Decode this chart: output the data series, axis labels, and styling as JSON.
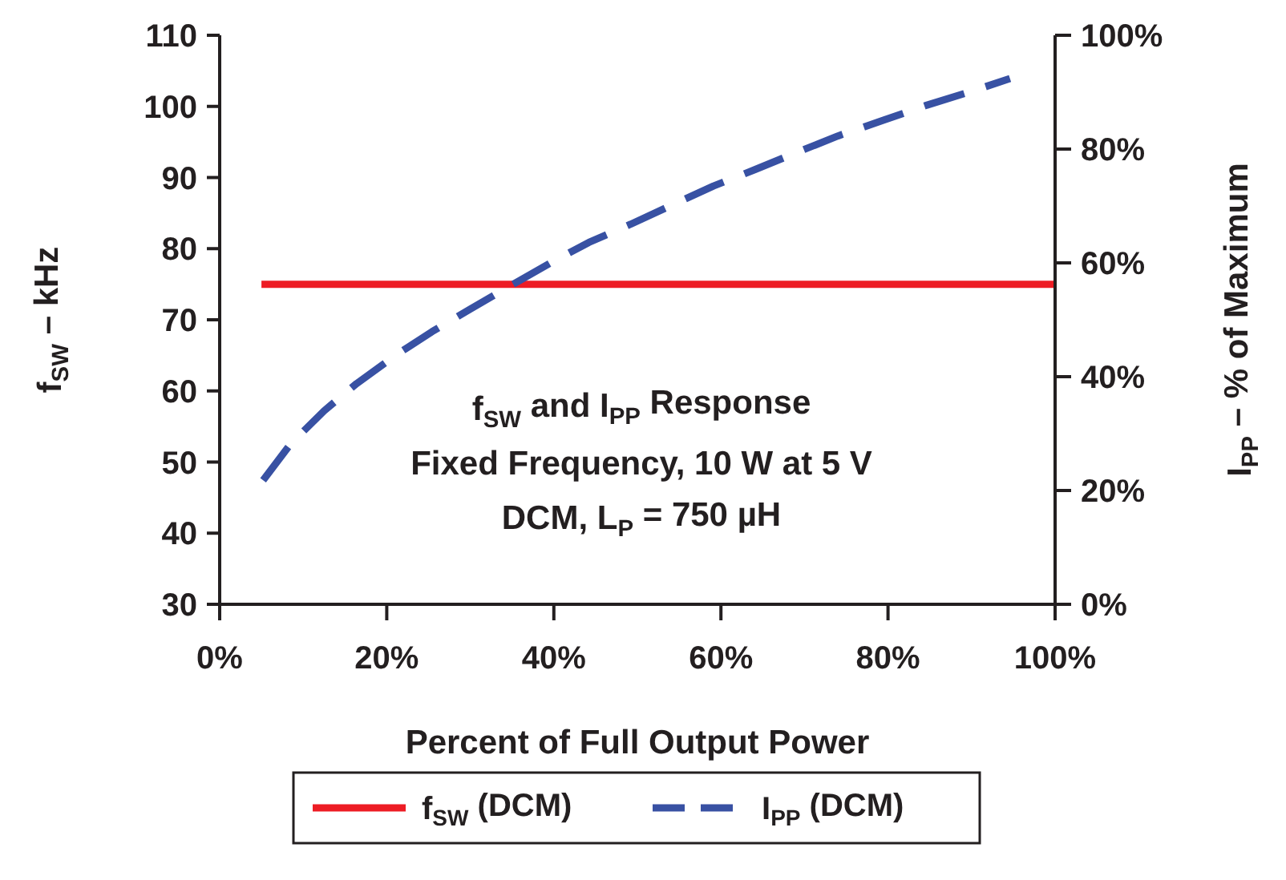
{
  "chart_data": {
    "type": "line",
    "xlabel": "Percent of Full Output Power",
    "ylabel": "f$_{SW}$ – kHz",
    "y2label": "I$_{PP}$ – % of Maximum",
    "xlim": [
      0,
      100
    ],
    "xticks": [
      {
        "value": 0,
        "label": "0%"
      },
      {
        "value": 20,
        "label": "20%"
      },
      {
        "value": 40,
        "label": "40%"
      },
      {
        "value": 60,
        "label": "60%"
      },
      {
        "value": 80,
        "label": "80%"
      },
      {
        "value": 100,
        "label": "100%"
      }
    ],
    "ylim": [
      30,
      110
    ],
    "yticks": [
      30,
      40,
      50,
      60,
      70,
      80,
      90,
      100,
      110
    ],
    "y2lim": [
      0,
      100
    ],
    "y2ticks": [
      {
        "value": 0,
        "label": "0%"
      },
      {
        "value": 20,
        "label": "20%"
      },
      {
        "value": 40,
        "label": "40%"
      },
      {
        "value": 60,
        "label": "60%"
      },
      {
        "value": 80,
        "label": "80%"
      },
      {
        "value": 100,
        "label": "100%"
      }
    ],
    "series": [
      {
        "name": "f$_{SW}$ (DCM)",
        "color": "#ed1c24",
        "line_style": "solid",
        "x": [
          5,
          100
        ],
        "values": [
          75,
          75
        ]
      },
      {
        "name": "I$_{PP}$ (DCM)",
        "color": "#3851a3",
        "line_style": "dashed",
        "axis": "y2",
        "x": [
          5.2,
          8.5,
          12.5,
          16.4,
          21,
          25.4,
          30,
          34.6,
          39.6,
          44.2,
          49.2,
          54.2,
          59.1,
          64.1,
          69.4,
          74,
          79.3,
          84.6,
          89.9,
          94.6
        ],
        "values": [
          21.8,
          28.2,
          34,
          38.8,
          43.7,
          47.9,
          51.9,
          55.8,
          60,
          63.6,
          66.8,
          70.2,
          73.5,
          76.4,
          79.6,
          82.3,
          85,
          87.7,
          90.1,
          92.4
        ]
      }
    ],
    "annotations": [
      "f$_{SW}$ and I$_{PP}$ Response",
      "Fixed Frequency, 10 W at 5 V",
      "DCM, L$_{P}$ = 750 µH"
    ],
    "legend": "bottom",
    "grid": false
  }
}
